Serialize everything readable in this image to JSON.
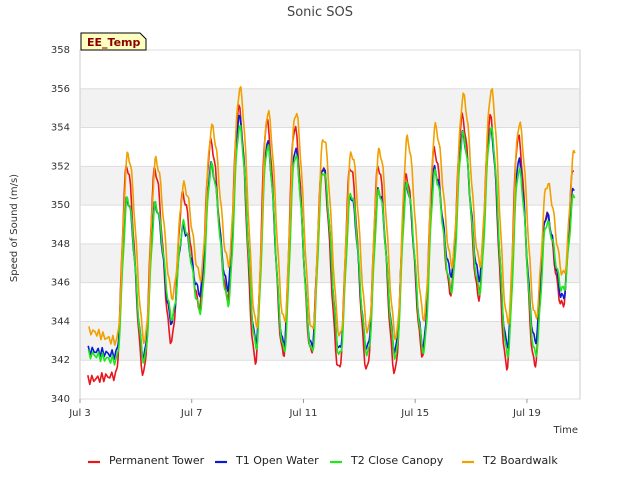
{
  "chart_data": {
    "type": "line",
    "title": "Sonic SOS",
    "xlabel": "Time",
    "ylabel": "Speed of Sound (m/s)",
    "badge": "EE_Temp",
    "ylim": [
      340,
      358
    ],
    "xlim_days": [
      3,
      20.9
    ],
    "yticks": [
      "340",
      "342",
      "344",
      "346",
      "348",
      "350",
      "352",
      "354",
      "356",
      "358"
    ],
    "xticks": [
      {
        "day": 3,
        "label": "Jul 3"
      },
      {
        "day": 7,
        "label": "Jul 7"
      },
      {
        "day": 11,
        "label": "Jul 11"
      },
      {
        "day": 15,
        "label": "Jul 15"
      },
      {
        "day": 19,
        "label": "Jul 19"
      }
    ],
    "grid": true,
    "legend_position": "bottom",
    "colors": {
      "band": "#f2f2f2",
      "grid": "#dddddd",
      "axis": "#cccccc"
    },
    "daily": {
      "days": [
        3,
        4,
        5,
        6,
        7,
        8,
        9,
        10,
        11,
        12,
        13,
        14,
        15,
        16,
        17,
        18,
        19,
        20
      ],
      "series": [
        {
          "name": "Permanent Tower",
          "color": "#e8161c",
          "max": [
            null,
            352.0,
            351.8,
            350.5,
            353.2,
            355.0,
            354.3,
            354.0,
            352.0,
            352.0,
            352.0,
            351.5,
            352.8,
            354.5,
            354.5,
            353.5,
            349.5,
            352.0
          ],
          "min": [
            341.0,
            341.2,
            341.3,
            343.0,
            344.8,
            345.3,
            342.0,
            342.3,
            342.4,
            341.5,
            341.5,
            341.4,
            342.3,
            345.5,
            345.3,
            341.7,
            341.8,
            344.8
          ]
        },
        {
          "name": "T1 Open Water",
          "color": "#0b1ad6",
          "max": [
            null,
            350.3,
            350.0,
            348.8,
            352.0,
            354.5,
            353.2,
            352.9,
            352.0,
            350.5,
            350.8,
            351.0,
            351.8,
            353.6,
            353.8,
            352.3,
            349.5,
            351.0
          ],
          "min": [
            342.5,
            342.3,
            342.2,
            344.0,
            345.5,
            345.8,
            343.0,
            342.8,
            342.7,
            342.5,
            342.6,
            342.5,
            342.8,
            346.5,
            346.3,
            342.8,
            343.0,
            345.2
          ]
        },
        {
          "name": "T2 Close Canopy",
          "color": "#1ee61e",
          "max": [
            null,
            350.3,
            350.0,
            349.0,
            352.0,
            354.0,
            353.0,
            352.6,
            351.8,
            350.6,
            350.7,
            351.0,
            351.6,
            353.6,
            353.9,
            351.8,
            349.1,
            350.6
          ],
          "min": [
            342.3,
            342.0,
            342.0,
            344.2,
            344.6,
            345.0,
            342.7,
            342.5,
            342.4,
            342.2,
            342.3,
            342.2,
            342.5,
            345.7,
            345.6,
            342.3,
            342.3,
            345.6
          ]
        },
        {
          "name": "T2 Boardwalk",
          "color": "#f0a000",
          "max": [
            null,
            352.6,
            352.3,
            351.0,
            354.0,
            356.0,
            354.8,
            354.8,
            353.5,
            352.7,
            352.8,
            353.4,
            354.0,
            355.6,
            355.9,
            354.2,
            351.1,
            352.9
          ],
          "min": [
            343.5,
            343.0,
            343.0,
            345.3,
            346.3,
            347.0,
            343.8,
            344.0,
            343.5,
            343.2,
            343.5,
            343.2,
            344.2,
            347.0,
            347.0,
            344.0,
            344.2,
            346.4
          ]
        }
      ]
    }
  }
}
